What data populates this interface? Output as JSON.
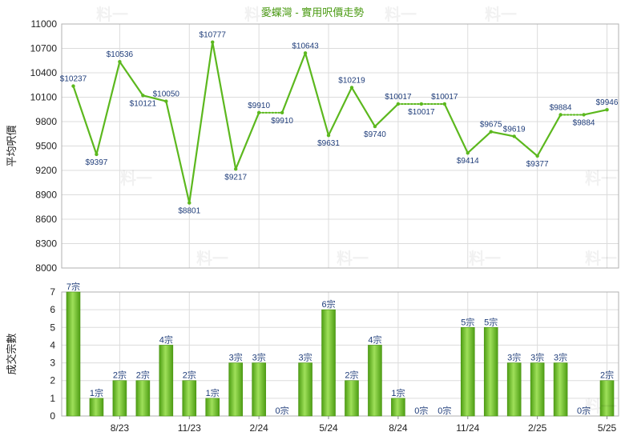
{
  "title": "愛蝶灣 - 實用呎價走勢",
  "watermark": "料一",
  "chart_data": [
    {
      "type": "line",
      "ylabel": "平均呎價",
      "ylim": [
        8000,
        11000
      ],
      "yticks": [
        8000,
        8300,
        8600,
        8900,
        9200,
        9500,
        9800,
        10100,
        10400,
        10700,
        11000
      ],
      "grid": true,
      "color": "#5cb81e",
      "points": [
        {
          "m": 0,
          "value": 10237,
          "label": "$10237"
        },
        {
          "m": 1,
          "value": 9397,
          "label": "$9397"
        },
        {
          "m": 2,
          "value": 10536,
          "label": "$10536"
        },
        {
          "m": 3,
          "value": 10121,
          "label": "$10121"
        },
        {
          "m": 4,
          "value": 10050,
          "label": "$10050"
        },
        {
          "m": 5,
          "value": 8801,
          "label": "$8801"
        },
        {
          "m": 6,
          "value": 10777,
          "label": "$10777"
        },
        {
          "m": 7,
          "value": 9217,
          "label": "$9217"
        },
        {
          "m": 8,
          "value": 9910,
          "label": "$9910"
        },
        {
          "m": 9,
          "value": 9910,
          "label": "$9910"
        },
        {
          "m": 10,
          "value": 10643,
          "label": "$10643"
        },
        {
          "m": 11,
          "value": 9631,
          "label": "$9631"
        },
        {
          "m": 12,
          "value": 10219,
          "label": "$10219"
        },
        {
          "m": 13,
          "value": 9740,
          "label": "$9740"
        },
        {
          "m": 14,
          "value": 10017,
          "label": "$10017"
        },
        {
          "m": 15,
          "value": 10017,
          "label": "$10017"
        },
        {
          "m": 16,
          "value": 10017,
          "label": "$10017"
        },
        {
          "m": 17,
          "value": 9414,
          "label": "$9414"
        },
        {
          "m": 18,
          "value": 9675,
          "label": "$9675"
        },
        {
          "m": 19,
          "value": 9619,
          "label": "$9619"
        },
        {
          "m": 20,
          "value": 9377,
          "label": "$9377"
        },
        {
          "m": 21,
          "value": 9884,
          "label": "$9884"
        },
        {
          "m": 22,
          "value": 9884,
          "label": "$9884"
        },
        {
          "m": 23,
          "value": 9946,
          "label": "$9946"
        }
      ],
      "dashed_segments": [
        [
          8,
          9
        ],
        [
          14,
          15
        ],
        [
          15,
          16
        ],
        [
          21,
          22
        ]
      ]
    },
    {
      "type": "bar",
      "ylabel": "成交宗數",
      "ylim": [
        0,
        7
      ],
      "yticks": [
        0,
        1,
        2,
        3,
        4,
        5,
        6,
        7
      ],
      "grid": true,
      "color": "#6cbf2a",
      "categories_ticks": [
        {
          "m": 2,
          "label": "8/23"
        },
        {
          "m": 5,
          "label": "11/23"
        },
        {
          "m": 8,
          "label": "2/24"
        },
        {
          "m": 11,
          "label": "5/24"
        },
        {
          "m": 14,
          "label": "8/24"
        },
        {
          "m": 17,
          "label": "11/24"
        },
        {
          "m": 20,
          "label": "2/25"
        },
        {
          "m": 23,
          "label": "5/25"
        }
      ],
      "values": [
        7,
        1,
        2,
        2,
        4,
        2,
        1,
        3,
        3,
        0,
        3,
        6,
        2,
        4,
        1,
        0,
        0,
        5,
        5,
        3,
        3,
        3,
        0,
        2
      ],
      "value_labels": [
        "7宗",
        "1宗",
        "2宗",
        "2宗",
        "4宗",
        "2宗",
        "1宗",
        "3宗",
        "3宗",
        "0宗",
        "3宗",
        "6宗",
        "2宗",
        "4宗",
        "1宗",
        "0宗",
        "0宗",
        "5宗",
        "5宗",
        "3宗",
        "3宗",
        "3宗",
        "0宗",
        "2宗"
      ]
    }
  ]
}
